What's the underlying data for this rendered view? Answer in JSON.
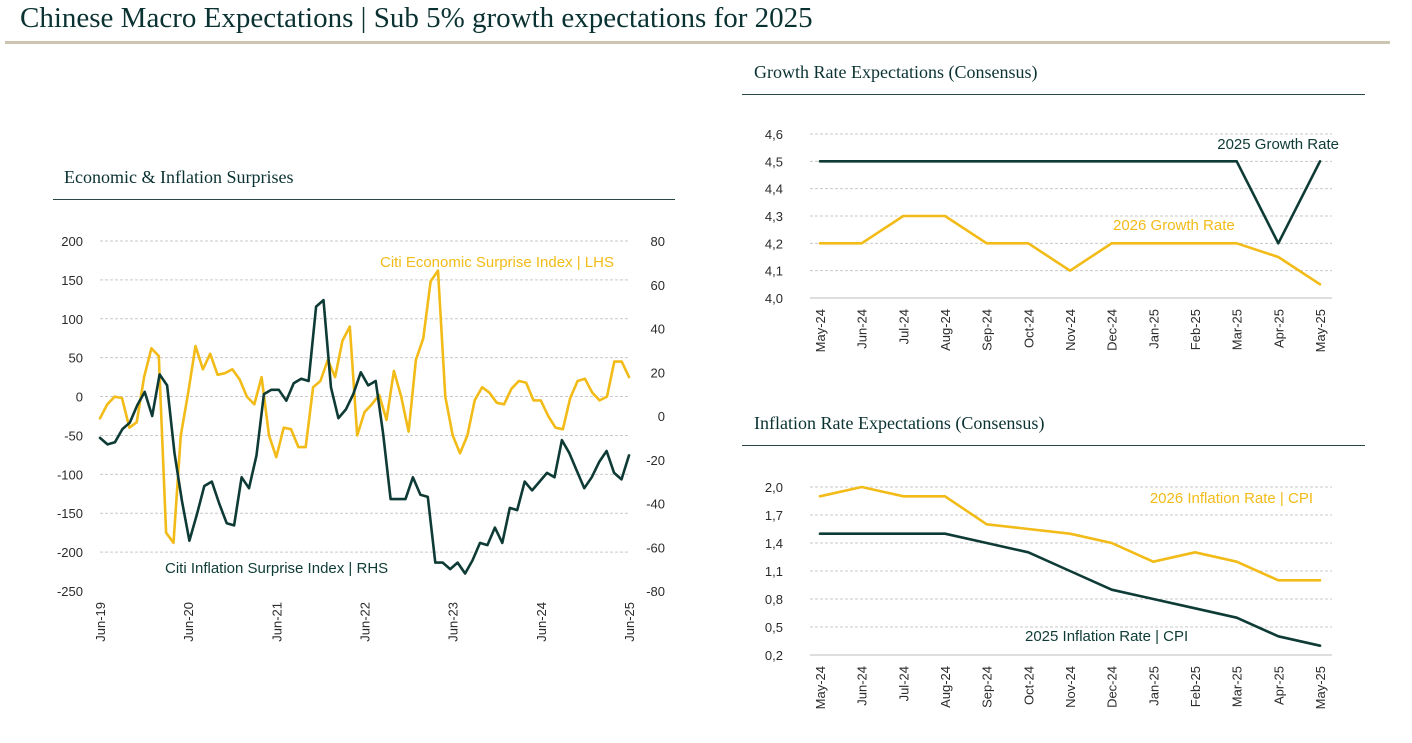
{
  "header": {
    "title": "Chinese Macro Expectations | Sub 5% growth expectations for 2025"
  },
  "colors": {
    "dark": "#0e3b35",
    "gold": "#f2bb17",
    "grid": "#c9c9c9"
  },
  "chart_data": [
    {
      "id": "surprises",
      "type": "line",
      "title": "Economic & Inflation Surprises",
      "x_ticks": [
        "Jun-19",
        "Jun-20",
        "Jun-21",
        "Jun-22",
        "Jun-23",
        "Jun-24",
        "Jun-25"
      ],
      "y_left": {
        "min": -250,
        "max": 200,
        "ticks": [
          200,
          150,
          100,
          50,
          0,
          -50,
          -100,
          -150,
          -200,
          -250
        ]
      },
      "y_right": {
        "min": -80,
        "max": 80,
        "ticks": [
          80,
          60,
          40,
          20,
          0,
          -20,
          -40,
          -60,
          -80
        ]
      },
      "series": [
        {
          "name": "Citi Economic Surprise Index | LHS",
          "axis": "left",
          "color": "gold",
          "values": [
            -28,
            -10,
            0,
            -2,
            -40,
            -33,
            25,
            62,
            52,
            -175,
            -188,
            -50,
            5,
            65,
            35,
            55,
            28,
            30,
            35,
            22,
            0,
            -10,
            25,
            -50,
            -78,
            -40,
            -42,
            -65,
            -65,
            12,
            20,
            47,
            25,
            72,
            90,
            -50,
            -20,
            -10,
            2,
            -30,
            33,
            0,
            -45,
            47,
            75,
            148,
            162,
            0,
            -50,
            -73,
            -50,
            -5,
            12,
            5,
            -8,
            -10,
            10,
            20,
            18,
            -5,
            -5,
            -25,
            -40,
            -42,
            -2,
            20,
            23,
            5,
            -5,
            0,
            45,
            45,
            25
          ]
        },
        {
          "name": "Citi Inflation Surprise Index | RHS",
          "axis": "right",
          "color": "dark",
          "values": [
            -10,
            -13,
            -12,
            -6,
            -3,
            5,
            11,
            0,
            19,
            14,
            -17,
            -39,
            -57,
            -45,
            -32,
            -30,
            -40,
            -49,
            -50,
            -28,
            -33,
            -18,
            10,
            12,
            12,
            7,
            15,
            17,
            16,
            50,
            53,
            13,
            -1,
            3,
            10,
            20,
            14,
            16,
            -8,
            -38,
            -38,
            -38,
            -28,
            -36,
            -37,
            -67,
            -67,
            -70,
            -67,
            -72,
            -66,
            -58,
            -59,
            -51,
            -58,
            -42,
            -43,
            -30,
            -34,
            -30,
            -26,
            -28,
            -11,
            -17,
            -25,
            -33,
            -28,
            -21,
            -16,
            -26,
            -29,
            -18
          ]
        }
      ]
    },
    {
      "id": "growth",
      "type": "line",
      "title": "Growth Rate Expectations (Consensus)",
      "categories": [
        "May-24",
        "Jun-24",
        "Jul-24",
        "Aug-24",
        "Sep-24",
        "Oct-24",
        "Nov-24",
        "Dec-24",
        "Jan-25",
        "Feb-25",
        "Mar-25",
        "Apr-25",
        "May-25"
      ],
      "ylim": [
        4.0,
        4.6
      ],
      "y_ticks": [
        "4,6",
        "4,5",
        "4,4",
        "4,3",
        "4,2",
        "4,1",
        "4,0"
      ],
      "series": [
        {
          "name": "2025 Growth Rate",
          "color": "dark",
          "values": [
            4.5,
            4.5,
            4.5,
            4.5,
            4.5,
            4.5,
            4.5,
            4.5,
            4.5,
            4.5,
            4.5,
            4.2,
            4.5
          ]
        },
        {
          "name": "2026 Growth Rate",
          "color": "gold",
          "values": [
            4.2,
            4.2,
            4.3,
            4.3,
            4.2,
            4.2,
            4.1,
            4.2,
            4.2,
            4.2,
            4.2,
            4.15,
            4.05
          ]
        }
      ]
    },
    {
      "id": "inflation",
      "type": "line",
      "title": "Inflation Rate Expectations (Consensus)",
      "categories": [
        "May-24",
        "Jun-24",
        "Jul-24",
        "Aug-24",
        "Sep-24",
        "Oct-24",
        "Nov-24",
        "Dec-24",
        "Jan-25",
        "Feb-25",
        "Mar-25",
        "Apr-25",
        "May-25"
      ],
      "ylim": [
        0.2,
        2.0
      ],
      "y_ticks": [
        "2,0",
        "1,7",
        "1,4",
        "1,1",
        "0,8",
        "0,5",
        "0,2"
      ],
      "series": [
        {
          "name": "2026 Inflation Rate | CPI",
          "color": "gold",
          "values": [
            1.9,
            2.0,
            1.9,
            1.9,
            1.6,
            1.55,
            1.5,
            1.4,
            1.2,
            1.3,
            1.2,
            1.0,
            1.0
          ]
        },
        {
          "name": "2025 Inflation Rate | CPI",
          "color": "dark",
          "values": [
            1.5,
            1.5,
            1.5,
            1.5,
            1.4,
            1.3,
            1.1,
            0.9,
            0.8,
            0.7,
            0.6,
            0.4,
            0.3
          ]
        }
      ]
    }
  ]
}
